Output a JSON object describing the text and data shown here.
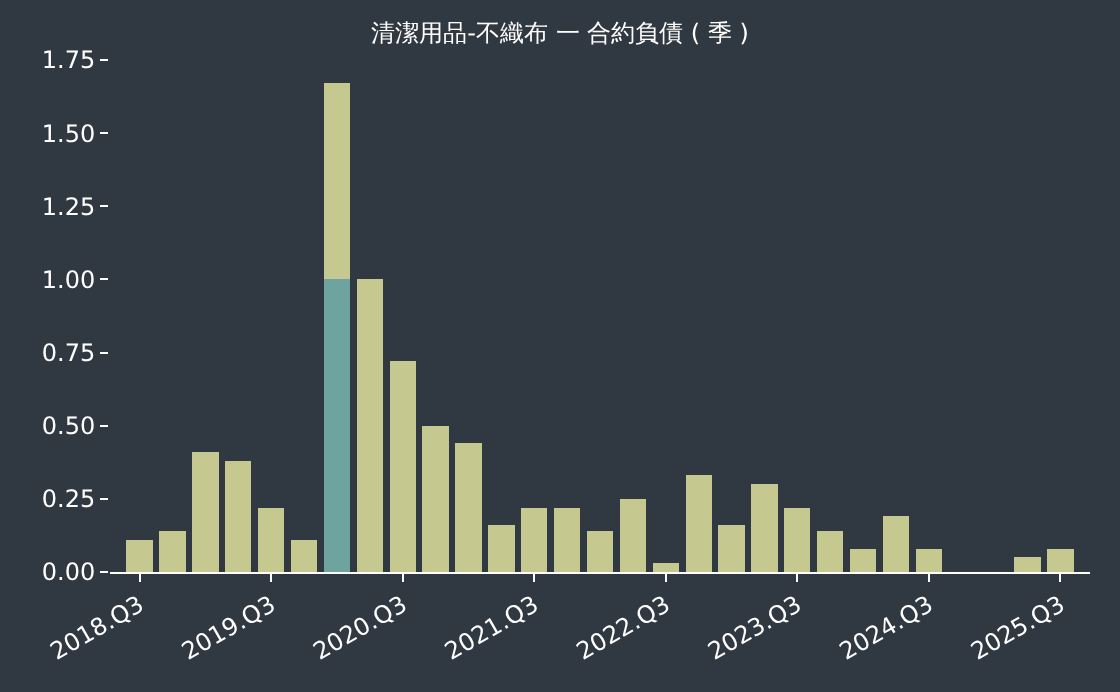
{
  "chart_data": {
    "type": "bar",
    "title": "清潔用品-不織布 一 合約負債 ( 季 )",
    "categories": [
      "2018.Q3",
      null,
      null,
      null,
      "2019.Q3",
      null,
      null,
      null,
      "2020.Q3",
      null,
      null,
      null,
      "2021.Q3",
      null,
      null,
      null,
      "2022.Q3",
      null,
      null,
      null,
      "2023.Q3",
      null,
      null,
      null,
      "2024.Q3",
      null,
      null,
      null,
      "2025.Q3"
    ],
    "stacked": true,
    "series": [
      {
        "color": "#6fa3a0",
        "values": [
          null,
          null,
          null,
          null,
          null,
          null,
          1.0,
          null,
          null,
          null,
          null,
          null,
          null,
          null,
          null,
          null,
          null,
          null,
          null,
          null,
          null,
          null,
          null,
          null,
          null,
          null,
          null,
          null,
          null
        ]
      },
      {
        "color": "#c5c98f",
        "values": [
          0.11,
          0.14,
          0.41,
          0.38,
          0.22,
          0.11,
          0.67,
          1.0,
          0.72,
          0.5,
          0.44,
          0.16,
          0.22,
          0.22,
          0.14,
          0.25,
          0.03,
          0.33,
          0.16,
          0.3,
          0.22,
          0.14,
          0.08,
          0.19,
          0.08,
          null,
          null,
          0.05,
          0.08
        ]
      }
    ],
    "ylim": [
      0,
      1.75
    ],
    "yticks": [
      {
        "value": 0,
        "label": "0.00"
      },
      {
        "value": 0.25,
        "label": "0.25"
      },
      {
        "value": 0.5,
        "label": "0.50"
      },
      {
        "value": 0.75,
        "label": "0.75"
      },
      {
        "value": 1.0,
        "label": "1.00"
      },
      {
        "value": 1.25,
        "label": "1.25"
      },
      {
        "value": 1.5,
        "label": "1.50"
      },
      {
        "value": 1.75,
        "label": "1.75"
      }
    ],
    "grid": false
  }
}
